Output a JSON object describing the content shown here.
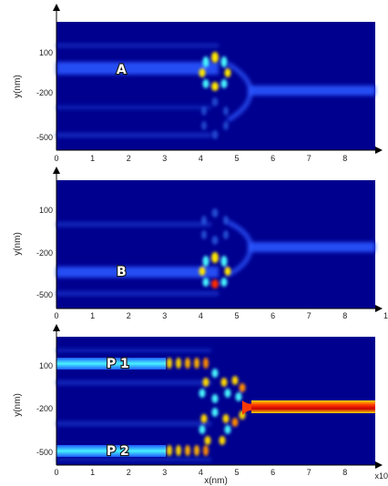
{
  "chart_data": [
    {
      "type": "heatmap",
      "xlabel": "",
      "ylabel": "y(nm)",
      "xlim": [
        0,
        9
      ],
      "x_ticks": [
        "0",
        "1",
        "2",
        "3",
        "4",
        "5",
        "6",
        "7",
        "8"
      ],
      "y_ticks": [
        "100",
        "-200",
        "-500"
      ],
      "x_end_label": "",
      "colormap": "jet",
      "annotations": [
        {
          "text": "A",
          "x": 1.8,
          "y": 50
        }
      ],
      "colors": {
        "background": "#00008f",
        "guide": "#1f3cff",
        "hot": "#ff2a00",
        "warm": "#ffd800"
      }
    },
    {
      "type": "heatmap",
      "xlabel": "",
      "ylabel": "y(nm)",
      "xlim": [
        0,
        9
      ],
      "x_ticks": [
        "0",
        "1",
        "2",
        "3",
        "4",
        "5",
        "6",
        "7",
        "8"
      ],
      "y_ticks": [
        "100",
        "-200",
        "-500"
      ],
      "x_end_label": "1",
      "colormap": "jet",
      "annotations": [
        {
          "text": "B",
          "x": 1.8,
          "y": -340
        }
      ],
      "colors": {
        "background": "#00008f",
        "guide": "#1f3cff",
        "hot": "#ff2a00",
        "warm": "#ffd800"
      }
    },
    {
      "type": "heatmap",
      "xlabel": "x(nm)",
      "ylabel": "y(nm)",
      "xlim": [
        0,
        9
      ],
      "x_ticks": [
        "0",
        "1",
        "2",
        "3",
        "4",
        "5",
        "6",
        "7",
        "8"
      ],
      "y_ticks": [
        "100",
        "-200",
        "-500"
      ],
      "x_end_label": "x10",
      "colormap": "jet",
      "annotations": [
        {
          "text": "P 1",
          "x": 1.7,
          "y": 100
        },
        {
          "text": "P 2",
          "x": 1.7,
          "y": -500
        }
      ],
      "colors": {
        "background": "#00008f",
        "guide": "#1f3cff",
        "hot": "#ff2a00",
        "warm": "#ffd800"
      }
    }
  ]
}
